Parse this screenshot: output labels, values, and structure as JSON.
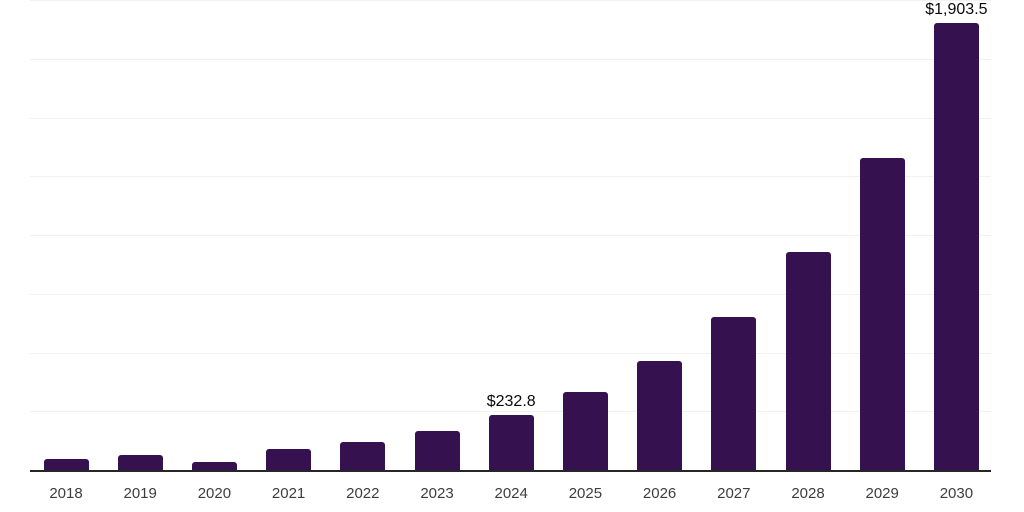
{
  "chart_data": {
    "type": "bar",
    "title": "",
    "xlabel": "",
    "ylabel": "",
    "categories": [
      "2018",
      "2019",
      "2020",
      "2021",
      "2022",
      "2023",
      "2024",
      "2025",
      "2026",
      "2027",
      "2028",
      "2029",
      "2030"
    ],
    "values": [
      48,
      65,
      36,
      88,
      118,
      166,
      232.8,
      330,
      463,
      652,
      926,
      1326,
      1903.5
    ],
    "point_labels": [
      "",
      "",
      "",
      "",
      "",
      "",
      "$232.8",
      "",
      "",
      "",
      "",
      "",
      "$1,903.5"
    ],
    "ylim": [
      0,
      2000
    ],
    "gridline_step": 250,
    "grid": "horizontal-only",
    "y_axis_tick_labels_visible": false,
    "legend_position": "none",
    "colors": {
      "bar": "#361150",
      "gridline": "#f1f1f1",
      "axis_line": "#262626",
      "x_tick_label": "#3d3d3d",
      "point_label": "#0a0a0a",
      "background": "#ffffff"
    }
  }
}
